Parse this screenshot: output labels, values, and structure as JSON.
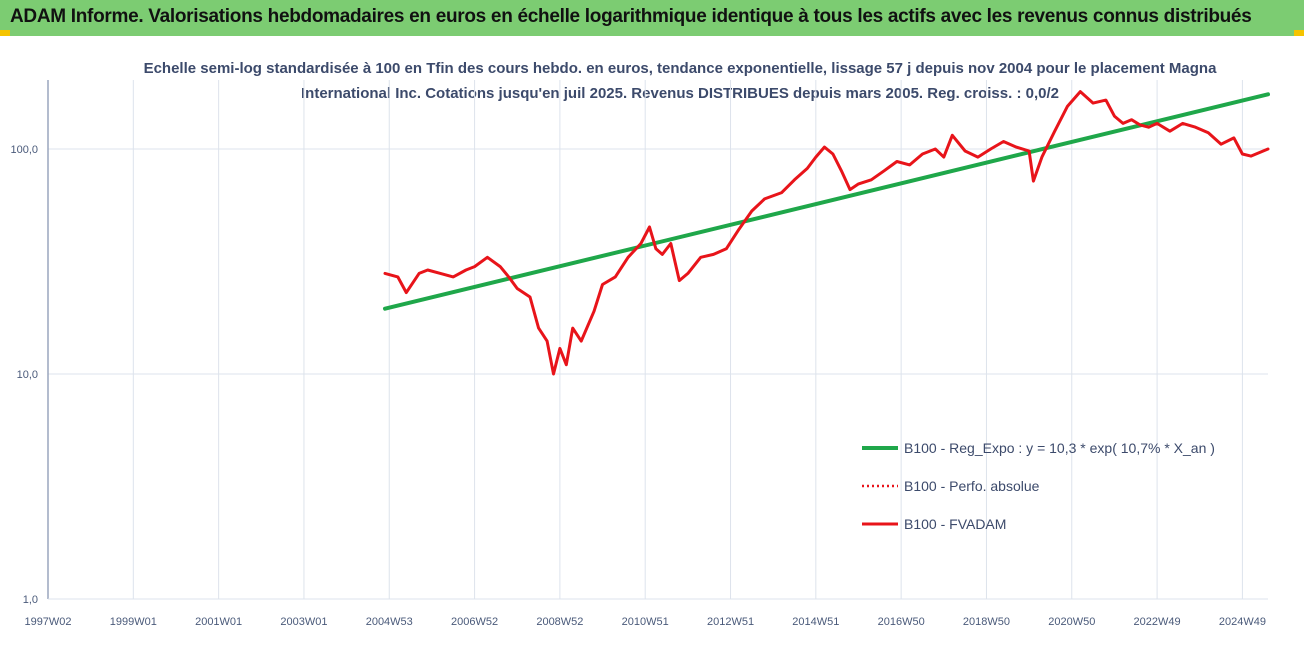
{
  "header": {
    "title": "ADAM Informe. Valorisations hebdomadaires en euros en échelle logarithmique identique à tous les actifs avec les revenus connus distribués"
  },
  "colors": {
    "header_bg": "#7ccc72",
    "regression": "#1fa74a",
    "fvadam": "#e8141a",
    "perfo": "#e8141a",
    "grid": "#dde3ec",
    "axis_text": "#4a5a7a"
  },
  "chart_data": {
    "type": "line",
    "title": "Echelle semi-log standardisée à 100 en Tfin des cours hebdo. en euros, tendance exponentielle, lissage 57 j depuis nov 2004 pour le placement Magna International Inc. Cotations jusqu'en juil 2025. Revenus DISTRIBUES depuis mars 2005. Reg. croiss. : 0,0/2",
    "y_scale": "log",
    "ylim": [
      1,
      200
    ],
    "y_ticks": [
      "1,0",
      "10,0",
      "100,0"
    ],
    "xlim": [
      1997.0,
      2025.6
    ],
    "x_ticks": [
      {
        "label": "1997W02",
        "x": 1997.0
      },
      {
        "label": "1999W01",
        "x": 1999.0
      },
      {
        "label": "2001W01",
        "x": 2001.0
      },
      {
        "label": "2003W01",
        "x": 2003.0
      },
      {
        "label": "2004W53",
        "x": 2005.0
      },
      {
        "label": "2006W52",
        "x": 2007.0
      },
      {
        "label": "2008W52",
        "x": 2009.0
      },
      {
        "label": "2010W51",
        "x": 2011.0
      },
      {
        "label": "2012W51",
        "x": 2013.0
      },
      {
        "label": "2014W51",
        "x": 2015.0
      },
      {
        "label": "2016W50",
        "x": 2017.0
      },
      {
        "label": "2018W50",
        "x": 2019.0
      },
      {
        "label": "2020W50",
        "x": 2021.0
      },
      {
        "label": "2022W49",
        "x": 2023.0
      },
      {
        "label": "2024W49",
        "x": 2025.0
      }
    ],
    "grid": true,
    "legend_position": "bottom-right",
    "series": [
      {
        "name": "B100 - Reg_Expo : y = 10,3 * exp( 10,7% *  X_an )",
        "style": "solid-green",
        "x": [
          2004.9,
          2025.6
        ],
        "y": [
          19.5,
          175
        ]
      },
      {
        "name": "B100 - Perfo. absolue",
        "style": "dotted-red",
        "x": [],
        "y": []
      },
      {
        "name": "B100 - FVADAM",
        "style": "solid-red",
        "x": [
          2004.9,
          2005.2,
          2005.4,
          2005.7,
          2005.9,
          2006.2,
          2006.5,
          2006.8,
          2007.0,
          2007.3,
          2007.6,
          2007.8,
          2008.0,
          2008.3,
          2008.5,
          2008.7,
          2008.85,
          2009.0,
          2009.15,
          2009.3,
          2009.5,
          2009.8,
          2010.0,
          2010.3,
          2010.6,
          2010.9,
          2011.1,
          2011.25,
          2011.4,
          2011.6,
          2011.8,
          2012.0,
          2012.3,
          2012.6,
          2012.9,
          2013.2,
          2013.5,
          2013.8,
          2014.2,
          2014.5,
          2014.8,
          2015.0,
          2015.2,
          2015.4,
          2015.6,
          2015.8,
          2016.0,
          2016.3,
          2016.6,
          2016.9,
          2017.2,
          2017.5,
          2017.8,
          2018.0,
          2018.2,
          2018.5,
          2018.8,
          2019.1,
          2019.4,
          2019.7,
          2020.0,
          2020.1,
          2020.3,
          2020.6,
          2020.9,
          2021.2,
          2021.5,
          2021.8,
          2022.0,
          2022.2,
          2022.4,
          2022.6,
          2022.8,
          2023.0,
          2023.3,
          2023.6,
          2023.9,
          2024.2,
          2024.5,
          2024.8,
          2025.0,
          2025.2,
          2025.6
        ],
        "y": [
          28,
          27,
          23,
          28,
          29,
          28,
          27,
          29,
          30,
          33,
          30,
          27,
          24,
          22,
          16,
          14,
          10,
          13,
          11,
          16,
          14,
          19,
          25,
          27,
          33,
          38,
          45,
          36,
          34,
          38,
          26,
          28,
          33,
          34,
          36,
          44,
          53,
          60,
          64,
          73,
          82,
          92,
          102,
          95,
          80,
          66,
          70,
          73,
          80,
          88,
          85,
          95,
          100,
          92,
          115,
          98,
          92,
          100,
          108,
          102,
          98,
          72,
          92,
          120,
          155,
          180,
          160,
          165,
          140,
          130,
          135,
          128,
          125,
          130,
          120,
          130,
          125,
          118,
          105,
          112,
          95,
          93,
          100
        ]
      }
    ]
  }
}
